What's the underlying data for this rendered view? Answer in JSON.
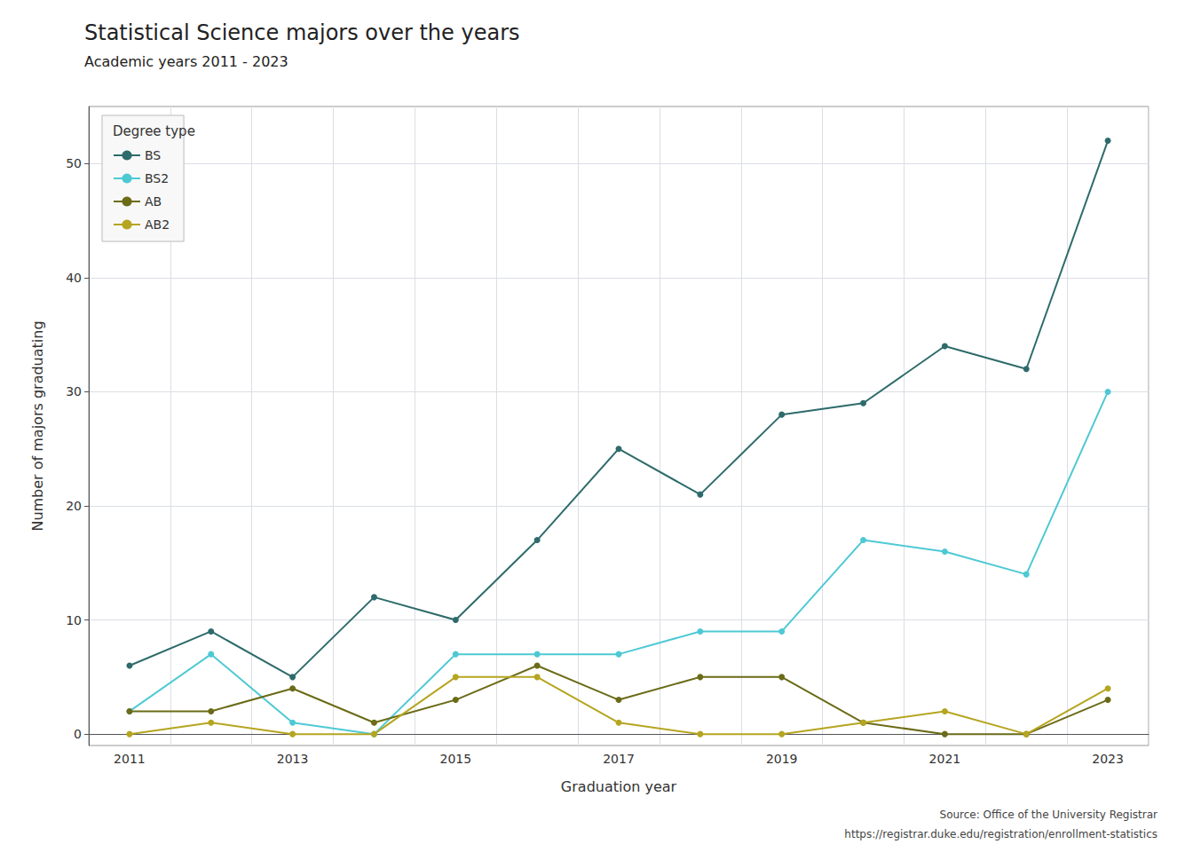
{
  "chart_data": {
    "type": "line",
    "title": "Statistical Science majors over the years",
    "subtitle": "Academic years 2011 - 2023",
    "xlabel": "Graduation year",
    "ylabel": "Number of majors graduating",
    "legend_title": "Degree type",
    "annotations": [
      "Source: Office of the University Registrar",
      "https://registrar.duke.edu/registration/enrollment-statistics"
    ],
    "categories": [
      "2011",
      null,
      "2013",
      null,
      "2015",
      null,
      "2017",
      null,
      "2019",
      null,
      "2021",
      null,
      "2023"
    ],
    "series": [
      {
        "name": "BS",
        "color": "#2e6b6b",
        "values": [
          6,
          9,
          5,
          12,
          10,
          17,
          25,
          21,
          28,
          29,
          34,
          32,
          52
        ]
      },
      {
        "name": "BS2",
        "color": "#4ec9d4",
        "values": [
          2,
          7,
          1,
          0,
          7,
          7,
          7,
          9,
          9,
          17,
          16,
          14,
          30
        ]
      },
      {
        "name": "AB",
        "color": "#6b6b18",
        "values": [
          2,
          2,
          4,
          1,
          3,
          6,
          3,
          5,
          5,
          1,
          0,
          0,
          3
        ]
      },
      {
        "name": "AB2",
        "color": "#b5a520",
        "values": [
          0,
          1,
          0,
          0,
          5,
          5,
          1,
          0,
          0,
          1,
          2,
          0,
          4
        ]
      }
    ],
    "ylim": [
      -1,
      55
    ],
    "yticks": [
      0,
      10,
      20,
      30,
      40,
      50
    ],
    "grid": true,
    "legend": "upper left",
    "marker": "circle"
  }
}
